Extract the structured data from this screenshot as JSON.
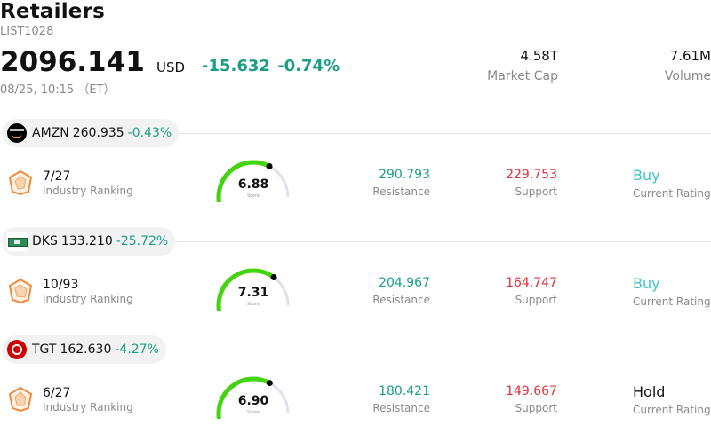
{
  "header": {
    "title": "Retailers",
    "code": "LIST1028",
    "price": "2096.141",
    "currency": "USD",
    "change": "-15.632 -0.74%",
    "time": "08/25, 10:15 （ET）",
    "market_cap_value": "4.58T",
    "market_cap_label": "Market Cap",
    "volume_value": "7.61M",
    "volume_label": "Volume"
  },
  "colors": {
    "up_green": "#1a9e86",
    "down_red": "#e0303a",
    "buy": "#3cc4c8",
    "gauge_fill": "#44d40e",
    "gauge_track": "#e0e0ea"
  },
  "stocks": [
    {
      "ticker": "AMZN",
      "price": "260.935",
      "change": "-0.43%",
      "logo": "amazon-logo",
      "rank": "7/27",
      "rank_label": "Industry Ranking",
      "score": "6.88",
      "score_value": 6.88,
      "score_label": "Score",
      "resistance": "290.793",
      "resistance_label": "Resistance",
      "support": "229.753",
      "support_label": "Support",
      "rating": "Buy",
      "rating_label": "Current Rating"
    },
    {
      "ticker": "DKS",
      "price": "133.210",
      "change": "-25.72%",
      "logo": "dicks-logo",
      "rank": "10/93",
      "rank_label": "Industry Ranking",
      "score": "7.31",
      "score_value": 7.31,
      "score_label": "Score",
      "resistance": "204.967",
      "resistance_label": "Resistance",
      "support": "164.747",
      "support_label": "Support",
      "rating": "Buy",
      "rating_label": "Current Rating"
    },
    {
      "ticker": "TGT",
      "price": "162.630",
      "change": "-4.27%",
      "logo": "target-logo",
      "rank": "6/27",
      "rank_label": "Industry Ranking",
      "score": "6.90",
      "score_value": 6.9,
      "score_label": "Score",
      "resistance": "180.421",
      "resistance_label": "Resistance",
      "support": "149.667",
      "support_label": "Support",
      "rating": "Hold",
      "rating_label": "Current Rating"
    }
  ]
}
